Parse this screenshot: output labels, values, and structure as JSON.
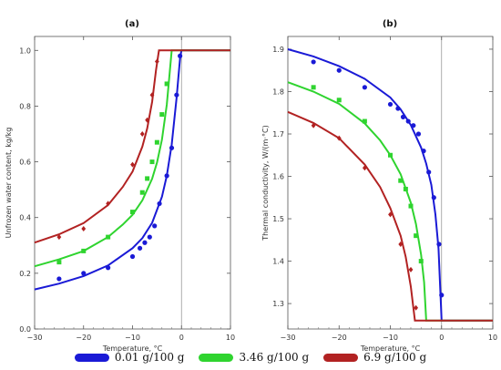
{
  "chart_data": [
    {
      "type": "scatter",
      "title": "(a)",
      "xlabel": "Temperature, °C",
      "ylabel": "Unfrozen water content, kg/kg",
      "xlim": [
        -30,
        10
      ],
      "ylim": [
        0.0,
        1.05
      ],
      "xticks": [
        "−30",
        "−20",
        "−10",
        "0",
        "10"
      ],
      "yticks": [
        "0.0",
        "0.2",
        "0.4",
        "0.6",
        "0.8",
        "1.0"
      ],
      "xtick_values": [
        -30,
        -20,
        -10,
        0,
        10
      ],
      "ytick_values": [
        0.0,
        0.2,
        0.4,
        0.6,
        0.8,
        1.0
      ],
      "vline_x": 0,
      "series": [
        {
          "name": "0.01 g/100 g",
          "color": "#1a1ad6",
          "marker": "circle",
          "points": [
            [
              -25,
              0.18
            ],
            [
              -20,
              0.2
            ],
            [
              -15,
              0.22
            ],
            [
              -10,
              0.26
            ],
            [
              -8.5,
              0.29
            ],
            [
              -7.5,
              0.31
            ],
            [
              -6.5,
              0.33
            ],
            [
              -5.5,
              0.37
            ],
            [
              -4.5,
              0.45
            ],
            [
              -3,
              0.55
            ],
            [
              -2,
              0.65
            ],
            [
              -1,
              0.84
            ],
            [
              -0.3,
              0.98
            ]
          ],
          "curve": [
            [
              -30,
              0.142
            ],
            [
              -25,
              0.163
            ],
            [
              -20,
              0.19
            ],
            [
              -15,
              0.228
            ],
            [
              -10,
              0.29
            ],
            [
              -8,
              0.326
            ],
            [
              -6,
              0.381
            ],
            [
              -4,
              0.475
            ],
            [
              -3,
              0.55
            ],
            [
              -2,
              0.662
            ],
            [
              -1,
              0.831
            ],
            [
              -0.6,
              0.91
            ],
            [
              -0.25,
              0.98
            ],
            [
              0,
              1.0
            ],
            [
              10,
              1.0
            ]
          ]
        },
        {
          "name": "3.46 g/100 g",
          "color": "#2fd42f",
          "marker": "square",
          "points": [
            [
              -25,
              0.24
            ],
            [
              -20,
              0.28
            ],
            [
              -15,
              0.33
            ],
            [
              -10,
              0.42
            ],
            [
              -8,
              0.49
            ],
            [
              -7,
              0.54
            ],
            [
              -6,
              0.6
            ],
            [
              -5,
              0.67
            ],
            [
              -4,
              0.77
            ],
            [
              -3,
              0.88
            ]
          ],
          "curve": [
            [
              -30,
              0.225
            ],
            [
              -25,
              0.25
            ],
            [
              -20,
              0.28
            ],
            [
              -15,
              0.33
            ],
            [
              -12,
              0.375
            ],
            [
              -10,
              0.41
            ],
            [
              -8,
              0.462
            ],
            [
              -6,
              0.539
            ],
            [
              -5,
              0.598
            ],
            [
              -4,
              0.68
            ],
            [
              -3,
              0.805
            ],
            [
              -2.5,
              0.902
            ],
            [
              -2,
              1.0
            ],
            [
              10,
              1.0
            ]
          ]
        },
        {
          "name": "6.9 g/100 g",
          "color": "#b22222",
          "marker": "diamond",
          "points": [
            [
              -25,
              0.33
            ],
            [
              -20,
              0.36
            ],
            [
              -15,
              0.45
            ],
            [
              -10,
              0.59
            ],
            [
              -8,
              0.7
            ],
            [
              -7,
              0.75
            ],
            [
              -6,
              0.84
            ],
            [
              -5,
              0.96
            ]
          ],
          "curve": [
            [
              -30,
              0.31
            ],
            [
              -25,
              0.34
            ],
            [
              -20,
              0.38
            ],
            [
              -15,
              0.445
            ],
            [
              -12,
              0.51
            ],
            [
              -10,
              0.565
            ],
            [
              -8,
              0.655
            ],
            [
              -7,
              0.72
            ],
            [
              -6,
              0.815
            ],
            [
              -5.2,
              0.93
            ],
            [
              -4.6,
              1.0
            ],
            [
              10,
              1.0
            ]
          ]
        }
      ]
    },
    {
      "type": "scatter",
      "title": "(b)",
      "xlabel": "Temperature, °C",
      "ylabel": "Thermal conductivity, W/(m·°C)",
      "xlim": [
        -30,
        10
      ],
      "ylim": [
        1.24,
        1.93
      ],
      "xticks": [
        "−30",
        "−20",
        "−10",
        "0",
        "10"
      ],
      "yticks": [
        "1.3",
        "1.4",
        "1.5",
        "1.6",
        "1.7",
        "1.8",
        "1.9"
      ],
      "xtick_values": [
        -30,
        -20,
        -10,
        0,
        10
      ],
      "ytick_values": [
        1.3,
        1.4,
        1.5,
        1.6,
        1.7,
        1.8,
        1.9
      ],
      "vline_x": 0,
      "series": [
        {
          "name": "0.01 g/100 g",
          "color": "#1a1ad6",
          "marker": "circle",
          "points": [
            [
              -25,
              1.87
            ],
            [
              -20,
              1.85
            ],
            [
              -15,
              1.81
            ],
            [
              -10,
              1.77
            ],
            [
              -8.5,
              1.76
            ],
            [
              -7.5,
              1.74
            ],
            [
              -6.5,
              1.73
            ],
            [
              -5.5,
              1.72
            ],
            [
              -4.5,
              1.7
            ],
            [
              -3.5,
              1.66
            ],
            [
              -2.5,
              1.61
            ],
            [
              -1.5,
              1.55
            ],
            [
              -0.5,
              1.44
            ],
            [
              0,
              1.32
            ]
          ],
          "curve": [
            [
              -30,
              1.9
            ],
            [
              -25,
              1.883
            ],
            [
              -20,
              1.86
            ],
            [
              -15,
              1.83
            ],
            [
              -10,
              1.786
            ],
            [
              -8,
              1.758
            ],
            [
              -6,
              1.721
            ],
            [
              -4,
              1.668
            ],
            [
              -3,
              1.63
            ],
            [
              -2,
              1.58
            ],
            [
              -1.2,
              1.51
            ],
            [
              -0.6,
              1.43
            ],
            [
              -0.2,
              1.32
            ],
            [
              0,
              1.26
            ],
            [
              10,
              1.26
            ]
          ]
        },
        {
          "name": "3.46 g/100 g",
          "color": "#2fd42f",
          "marker": "square",
          "points": [
            [
              -25,
              1.81
            ],
            [
              -20,
              1.78
            ],
            [
              -15,
              1.73
            ],
            [
              -10,
              1.65
            ],
            [
              -8,
              1.59
            ],
            [
              -7,
              1.57
            ],
            [
              -6,
              1.53
            ],
            [
              -5,
              1.46
            ],
            [
              -4,
              1.4
            ]
          ],
          "curve": [
            [
              -30,
              1.822
            ],
            [
              -25,
              1.8
            ],
            [
              -20,
              1.771
            ],
            [
              -15,
              1.725
            ],
            [
              -12,
              1.685
            ],
            [
              -10,
              1.65
            ],
            [
              -8,
              1.605
            ],
            [
              -6,
              1.538
            ],
            [
              -5,
              1.488
            ],
            [
              -4,
              1.415
            ],
            [
              -3.4,
              1.35
            ],
            [
              -3.0,
              1.26
            ],
            [
              10,
              1.26
            ]
          ]
        },
        {
          "name": "6.9 g/100 g",
          "color": "#b22222",
          "marker": "diamond",
          "points": [
            [
              -25,
              1.72
            ],
            [
              -20,
              1.69
            ],
            [
              -15,
              1.62
            ],
            [
              -10,
              1.51
            ],
            [
              -8,
              1.44
            ],
            [
              -6,
              1.38
            ],
            [
              -5,
              1.29
            ]
          ],
          "curve": [
            [
              -30,
              1.752
            ],
            [
              -25,
              1.726
            ],
            [
              -20,
              1.69
            ],
            [
              -15,
              1.628
            ],
            [
              -12,
              1.575
            ],
            [
              -10,
              1.525
            ],
            [
              -8,
              1.46
            ],
            [
              -7,
              1.41
            ],
            [
              -6,
              1.34
            ],
            [
              -5.5,
              1.29
            ],
            [
              -5.2,
              1.26
            ],
            [
              10,
              1.26
            ]
          ]
        }
      ]
    }
  ],
  "legend": [
    {
      "label": "0.01 g/100 g",
      "color": "#1a1ad6"
    },
    {
      "label": "3.46 g/100 g",
      "color": "#2fd42f"
    },
    {
      "label": "6.9 g/100 g",
      "color": "#b22222"
    }
  ]
}
